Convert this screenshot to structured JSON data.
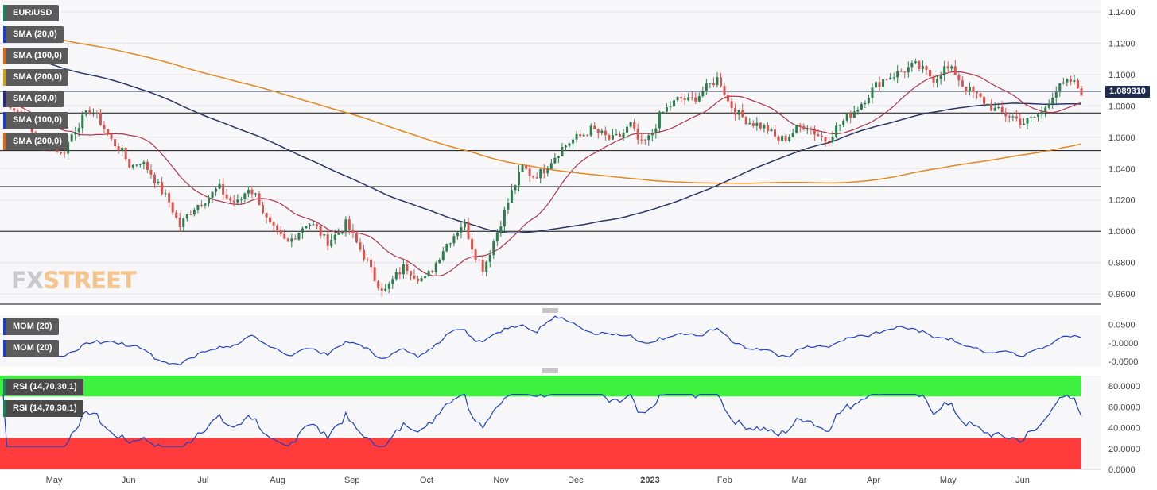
{
  "symbol": "EUR/USD",
  "overlay_labels": [
    {
      "text": "EUR/USD",
      "color": "#1a7f5a"
    },
    {
      "text": "SMA (20,0)",
      "color": "#1f3fbf"
    },
    {
      "text": "SMA (100,0)",
      "color": "#d2691e"
    },
    {
      "text": "SMA (200,0)",
      "color": "#c8a020"
    },
    {
      "text": "SMA (20,0)",
      "color": "#2a2a7a"
    },
    {
      "text": "SMA (100,0)",
      "color": "#1f3fbf"
    },
    {
      "text": "SMA (200,0)",
      "color": "#d2691e"
    }
  ],
  "mom_labels": [
    "MOM (20)",
    "MOM (20)"
  ],
  "rsi_labels": [
    "RSI (14,70,30,1)",
    "RSI (14,70,30,1)"
  ],
  "logo": {
    "part1": "FX",
    "part2": "STREET"
  },
  "last_price": "1.089310",
  "colors": {
    "up": "#2e7d4f",
    "down": "#d9534f",
    "sma20": "#b0334a",
    "sma100": "#2c3566",
    "sma200": "#e08a1e",
    "indicator": "#1f3fbf",
    "rsi_overbought": "#3ef03e",
    "rsi_oversold": "#ff3b3b"
  },
  "chart_data": [
    {
      "type": "candlestick",
      "title": "EUR/USD",
      "x_ticks": [
        "May",
        "Jun",
        "Jul",
        "Aug",
        "Sep",
        "Oct",
        "Nov",
        "Dec",
        "2023",
        "Feb",
        "Mar",
        "Apr",
        "May",
        "Jun"
      ],
      "y_ticks": [
        "1.1400",
        "1.1200",
        "1.1000",
        "1.0800",
        "1.0600",
        "1.0400",
        "1.0200",
        "1.0000",
        "0.9800",
        "0.9600"
      ],
      "ylim": [
        0.953,
        1.145
      ],
      "horizontal_levels": [
        1.0893,
        1.0755,
        1.0515,
        1.0285,
        1.0,
        0.9535
      ],
      "close_path": [
        1.086,
        1.079,
        1.074,
        1.062,
        1.052,
        1.056,
        1.048,
        1.062,
        1.071,
        1.078,
        1.069,
        1.058,
        1.052,
        1.041,
        1.045,
        1.038,
        1.027,
        1.018,
        1.003,
        1.012,
        1.018,
        1.022,
        1.028,
        1.02,
        1.018,
        1.028,
        1.021,
        1.005,
        0.998,
        0.992,
        0.999,
        1.006,
        1.002,
        0.993,
        0.998,
        1.005,
        0.993,
        0.982,
        0.968,
        0.962,
        0.971,
        0.978,
        0.972,
        0.969,
        0.978,
        0.99,
        0.998,
        1.006,
        0.987,
        0.976,
        0.993,
        1.01,
        1.027,
        1.041,
        1.035,
        1.038,
        1.046,
        1.053,
        1.058,
        1.061,
        1.065,
        1.062,
        1.058,
        1.061,
        1.068,
        1.055,
        1.06,
        1.074,
        1.08,
        1.085,
        1.083,
        1.087,
        1.093,
        1.098,
        1.082,
        1.075,
        1.07,
        1.068,
        1.065,
        1.058,
        1.06,
        1.066,
        1.068,
        1.062,
        1.058,
        1.066,
        1.072,
        1.078,
        1.085,
        1.093,
        1.098,
        1.1,
        1.103,
        1.106,
        1.102,
        1.097,
        1.104,
        1.102,
        1.092,
        1.088,
        1.083,
        1.078,
        1.075,
        1.073,
        1.069,
        1.072,
        1.076,
        1.087,
        1.093,
        1.096,
        1.089
      ]
    },
    {
      "type": "line",
      "title": "MOM (20)",
      "y_ticks": [
        "0.0500",
        "-0.0000",
        "-0.0500"
      ],
      "ylim": [
        -0.065,
        0.075
      ]
    },
    {
      "type": "line",
      "title": "RSI (14,70,30,1)",
      "y_ticks": [
        "80.0000",
        "60.0000",
        "40.0000",
        "20.0000",
        "0.0000"
      ],
      "ylim": [
        0,
        90
      ],
      "overbought": 70,
      "oversold": 30
    }
  ]
}
